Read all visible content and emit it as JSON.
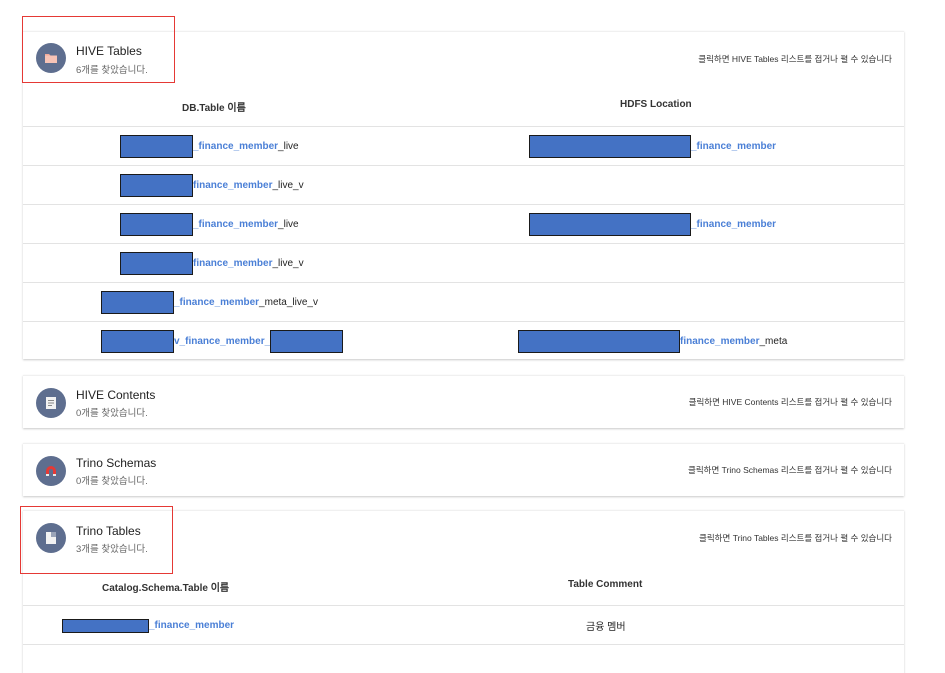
{
  "hive_tables": {
    "title": "HIVE Tables",
    "count": "6개를 찾았습니다.",
    "hint": "클릭하면 HIVE Tables 리스트를 접거나 펼 수 있습니다",
    "columns": [
      "DB.Table 이름",
      "HDFS Location"
    ],
    "rows": [
      {
        "table": [
          "",
          "_finance_member",
          "_live"
        ],
        "location": [
          "",
          "_finance_member",
          ""
        ]
      },
      {
        "table": [
          "",
          "finance_member",
          "_live_v"
        ],
        "location": [
          "",
          "",
          ""
        ]
      },
      {
        "table": [
          "",
          "_finance_member",
          "_live"
        ],
        "location": [
          "",
          "_finance_member",
          ""
        ]
      },
      {
        "table": [
          "",
          "finance_member",
          "_live_v"
        ],
        "location": [
          "",
          "",
          ""
        ]
      },
      {
        "table": [
          "",
          "_finance_member",
          "_meta_live_v"
        ],
        "location": [
          "",
          "",
          ""
        ]
      },
      {
        "table": [
          "",
          "v_finance_member_",
          ""
        ],
        "location": [
          "",
          "finance_member",
          "_meta"
        ]
      }
    ]
  },
  "hive_contents": {
    "title": "HIVE Contents",
    "count": "0개를 찾았습니다.",
    "hint": "클릭하면 HIVE Contents 리스트를 접거나 펼 수 있습니다"
  },
  "trino_schemas": {
    "title": "Trino Schemas",
    "count": "0개를 찾았습니다.",
    "hint": "클릭하면 Trino Schemas 리스트를 접거나 펼 수 있습니다"
  },
  "trino_tables": {
    "title": "Trino Tables",
    "count": "3개를 찾았습니다.",
    "hint": "클릭하면 Trino Tables 리스트를 접거나 펼 수 있습니다",
    "columns": [
      "Catalog.Schema.Table 이름",
      "Table Comment"
    ],
    "rows": [
      {
        "table": [
          "",
          "_finance_member",
          ""
        ],
        "comment": "금융 멤버"
      }
    ]
  },
  "icons": {
    "folder": "folder-icon",
    "document": "document-icon",
    "magnet": "magnet-icon",
    "table": "table-icon"
  },
  "colors": {
    "accent": "#4a7fd6",
    "redact": "#4472c4",
    "highlight": "#e53935",
    "icon_bg": "#5e6e8f"
  }
}
